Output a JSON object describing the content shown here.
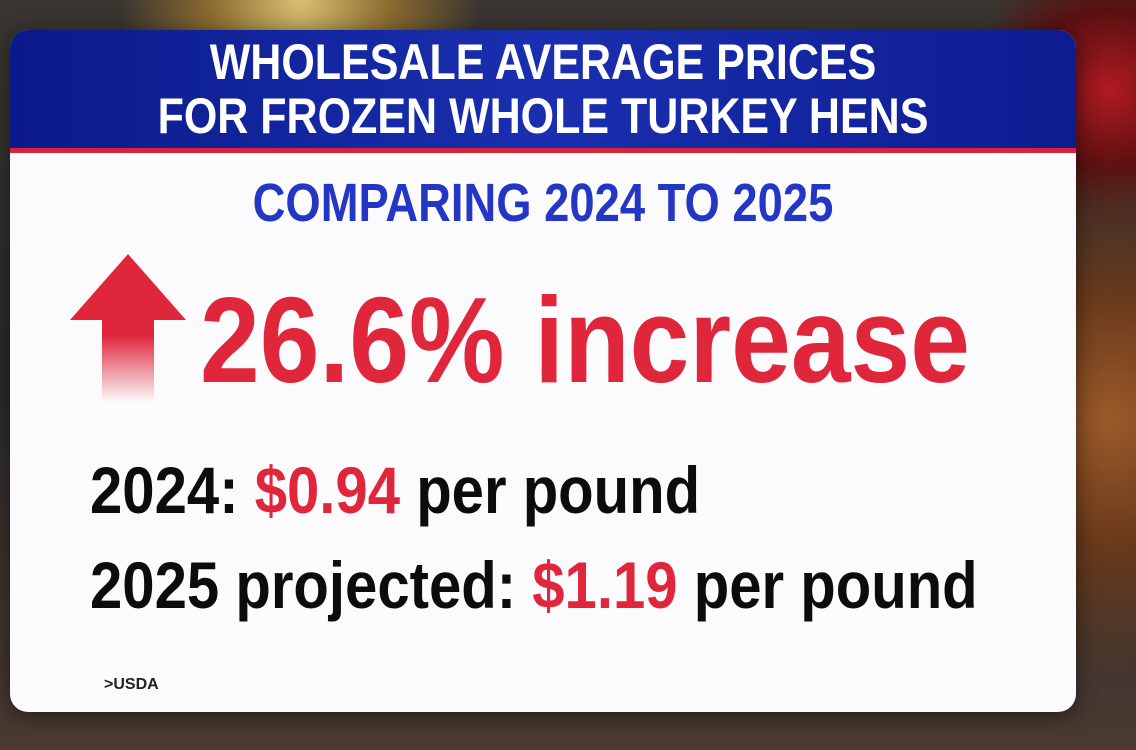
{
  "header": {
    "title_lines": [
      "WHOLESALE AVERAGE PRICES",
      "FOR FROZEN WHOLE TURKEY HENS"
    ]
  },
  "subtitle": "COMPARING 2024 TO 2025",
  "headline": "26.6% increase",
  "lines": [
    {
      "label": "2024:",
      "price": "$0.94",
      "unit": "per pound"
    },
    {
      "label": "2025 projected:",
      "price": "$1.19",
      "unit": "per pound"
    }
  ],
  "source": ">USDA"
}
